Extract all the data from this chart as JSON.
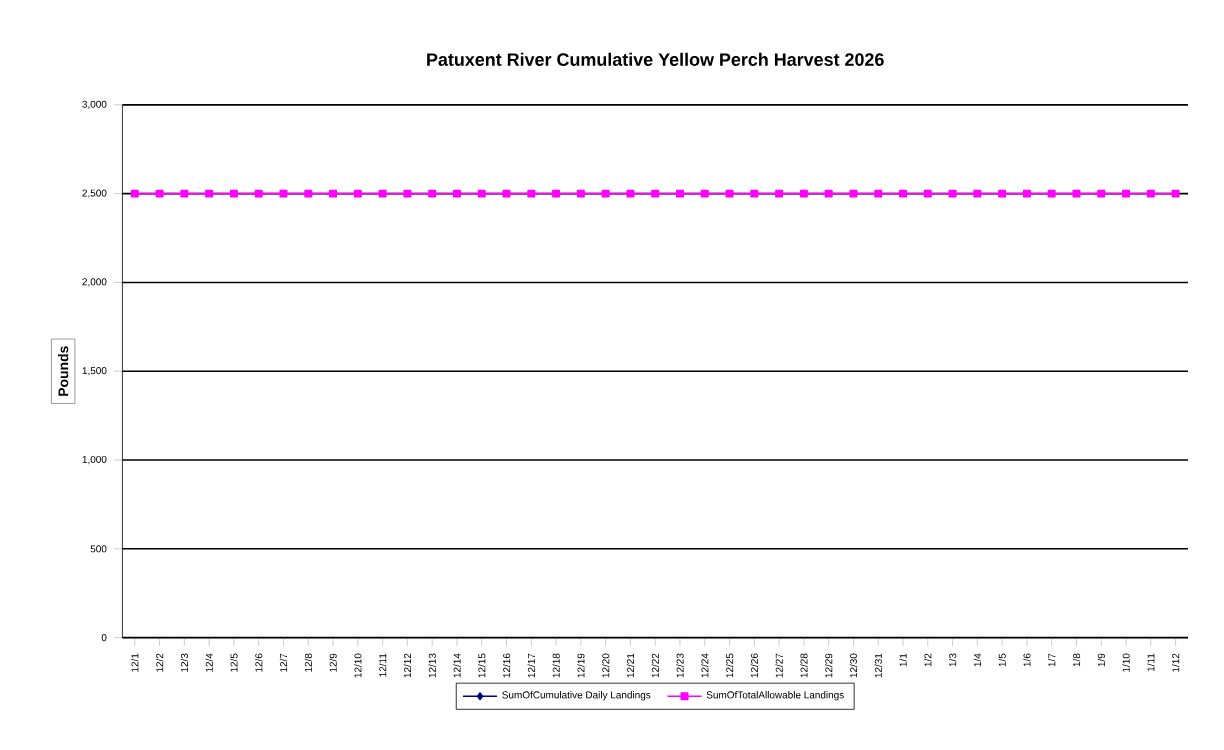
{
  "chart_data": {
    "type": "line",
    "title": "Patuxent River Cumulative Yellow Perch Harvest 2026",
    "ylabel": "Pounds",
    "categories": [
      "12/1",
      "12/2",
      "12/3",
      "12/4",
      "12/5",
      "12/6",
      "12/7",
      "12/8",
      "12/9",
      "12/10",
      "12/11",
      "12/12",
      "12/13",
      "12/14",
      "12/15",
      "12/16",
      "12/17",
      "12/18",
      "12/19",
      "12/20",
      "12/21",
      "12/22",
      "12/23",
      "12/24",
      "12/25",
      "12/26",
      "12/27",
      "12/28",
      "12/29",
      "12/30",
      "12/31",
      "1/1",
      "1/2",
      "1/3",
      "1/4",
      "1/5",
      "1/6",
      "1/7",
      "1/8",
      "1/9",
      "1/10",
      "1/11",
      "1/12"
    ],
    "series": [
      {
        "name": "SumOfCumulative Daily Landings",
        "color": "#000080",
        "marker": "diamond",
        "values": [
          null,
          null,
          null,
          null,
          null,
          null,
          null,
          null,
          null,
          null,
          null,
          null,
          null,
          null,
          null,
          null,
          null,
          null,
          null,
          null,
          null,
          null,
          null,
          null,
          null,
          null,
          null,
          null,
          null,
          null,
          null,
          null,
          null,
          null,
          null,
          null,
          null,
          null,
          null,
          null,
          null,
          null,
          null
        ]
      },
      {
        "name": "SumOfTotalAllowable Landings",
        "color": "#ff00ff",
        "marker": "square",
        "values": [
          2500,
          2500,
          2500,
          2500,
          2500,
          2500,
          2500,
          2500,
          2500,
          2500,
          2500,
          2500,
          2500,
          2500,
          2500,
          2500,
          2500,
          2500,
          2500,
          2500,
          2500,
          2500,
          2500,
          2500,
          2500,
          2500,
          2500,
          2500,
          2500,
          2500,
          2500,
          2500,
          2500,
          2500,
          2500,
          2500,
          2500,
          2500,
          2500,
          2500,
          2500,
          2500,
          2500
        ]
      }
    ],
    "ylim": [
      0,
      3000
    ],
    "yticks": [
      {
        "value": 0,
        "label": "0"
      },
      {
        "value": 500,
        "label": "500"
      },
      {
        "value": 1000,
        "label": "1,000"
      },
      {
        "value": 1500,
        "label": "1,500"
      },
      {
        "value": 2000,
        "label": "2,000"
      },
      {
        "value": 2500,
        "label": "2,500"
      },
      {
        "value": 3000,
        "label": "3,000"
      }
    ],
    "grid": "y",
    "legend": "bottom"
  }
}
